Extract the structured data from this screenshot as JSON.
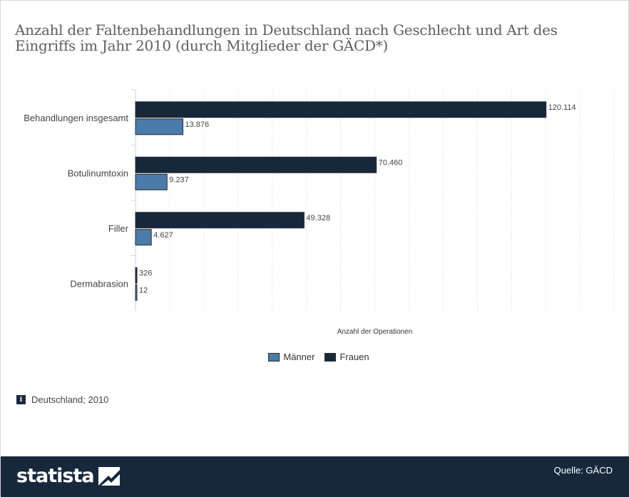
{
  "title": "Anzahl der Faltenbehandlungen in Deutschland nach Geschlecht und Art des Eingriffs im Jahr 2010 (durch Mitglieder der GÄCD*)",
  "chart_data": {
    "type": "bar",
    "orientation": "horizontal",
    "categories": [
      "Behandlungen insgesamt",
      "Botulinumtoxin",
      "Filler",
      "Dermabrasion"
    ],
    "series": [
      {
        "name": "Frauen",
        "values": [
          120114,
          70460,
          49328,
          326
        ],
        "labels": [
          "120.114",
          "70.460",
          "49.328",
          "326"
        ],
        "color": "#17283d"
      },
      {
        "name": "Männer",
        "values": [
          13876,
          9237,
          4627,
          12
        ],
        "labels": [
          "13.876",
          "9.237",
          "4.627",
          "12"
        ],
        "color": "#4b7ba8"
      }
    ],
    "xlabel": "Anzahl der Operationen",
    "xlim": [
      0,
      140000
    ],
    "grid": true,
    "legend": "bottom-center"
  },
  "legend": {
    "items": [
      {
        "label": "Männer",
        "color": "#4b7ba8"
      },
      {
        "label": "Frauen",
        "color": "#17283d"
      }
    ]
  },
  "info_text": "Deutschland; 2010",
  "footer": {
    "brand": "statista",
    "source": "Quelle: GÄCD"
  }
}
